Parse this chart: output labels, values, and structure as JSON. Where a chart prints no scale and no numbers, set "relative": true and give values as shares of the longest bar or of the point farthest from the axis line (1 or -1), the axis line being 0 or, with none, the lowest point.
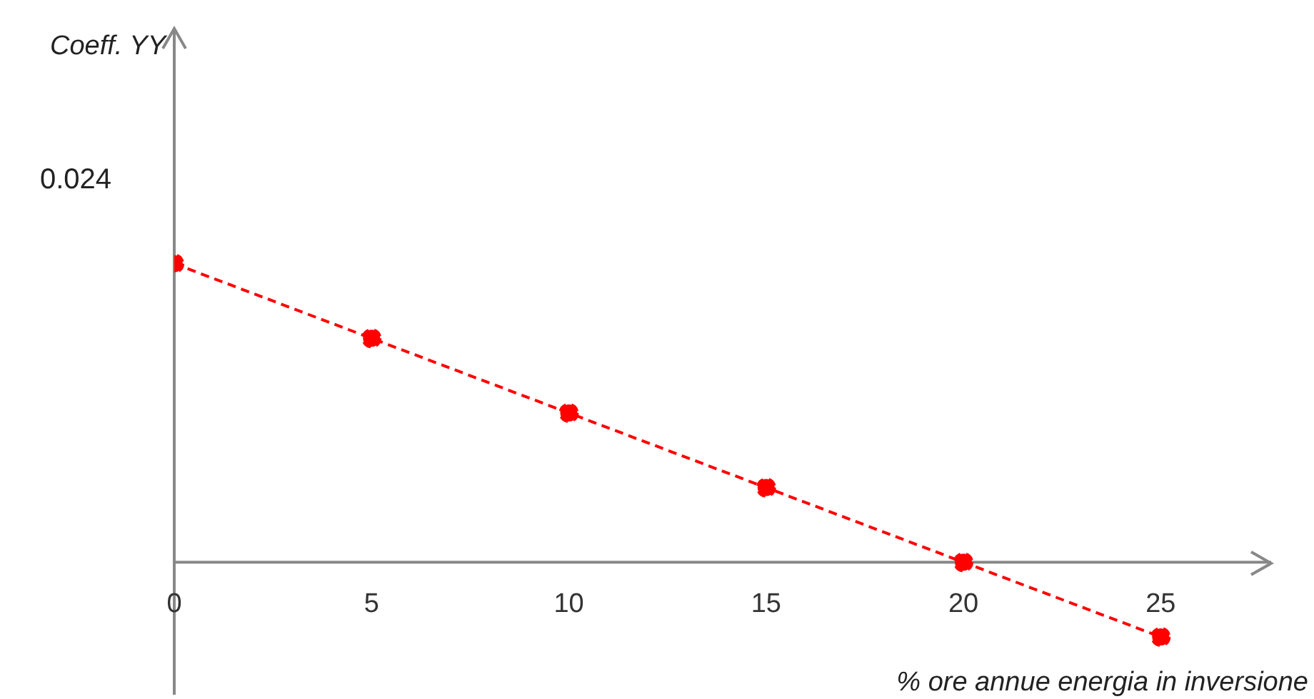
{
  "chart_data": {
    "type": "line",
    "xlabel": "% ore annue energia in inversione",
    "annotations": [
      "Coeff. YY",
      "0.024"
    ],
    "x": [
      0,
      5,
      10,
      15,
      20,
      25
    ],
    "series": [
      {
        "color": "#ff0000",
        "values": [
          1,
          0.75,
          0.5,
          0.25,
          0,
          -0.25
        ]
      }
    ],
    "relative": true,
    "xlim": [
      0,
      27.8
    ],
    "xticks": [
      0,
      5,
      10,
      15,
      20,
      25
    ],
    "marker": "circle",
    "line_style": "dashed",
    "grid": false,
    "legend": false
  }
}
